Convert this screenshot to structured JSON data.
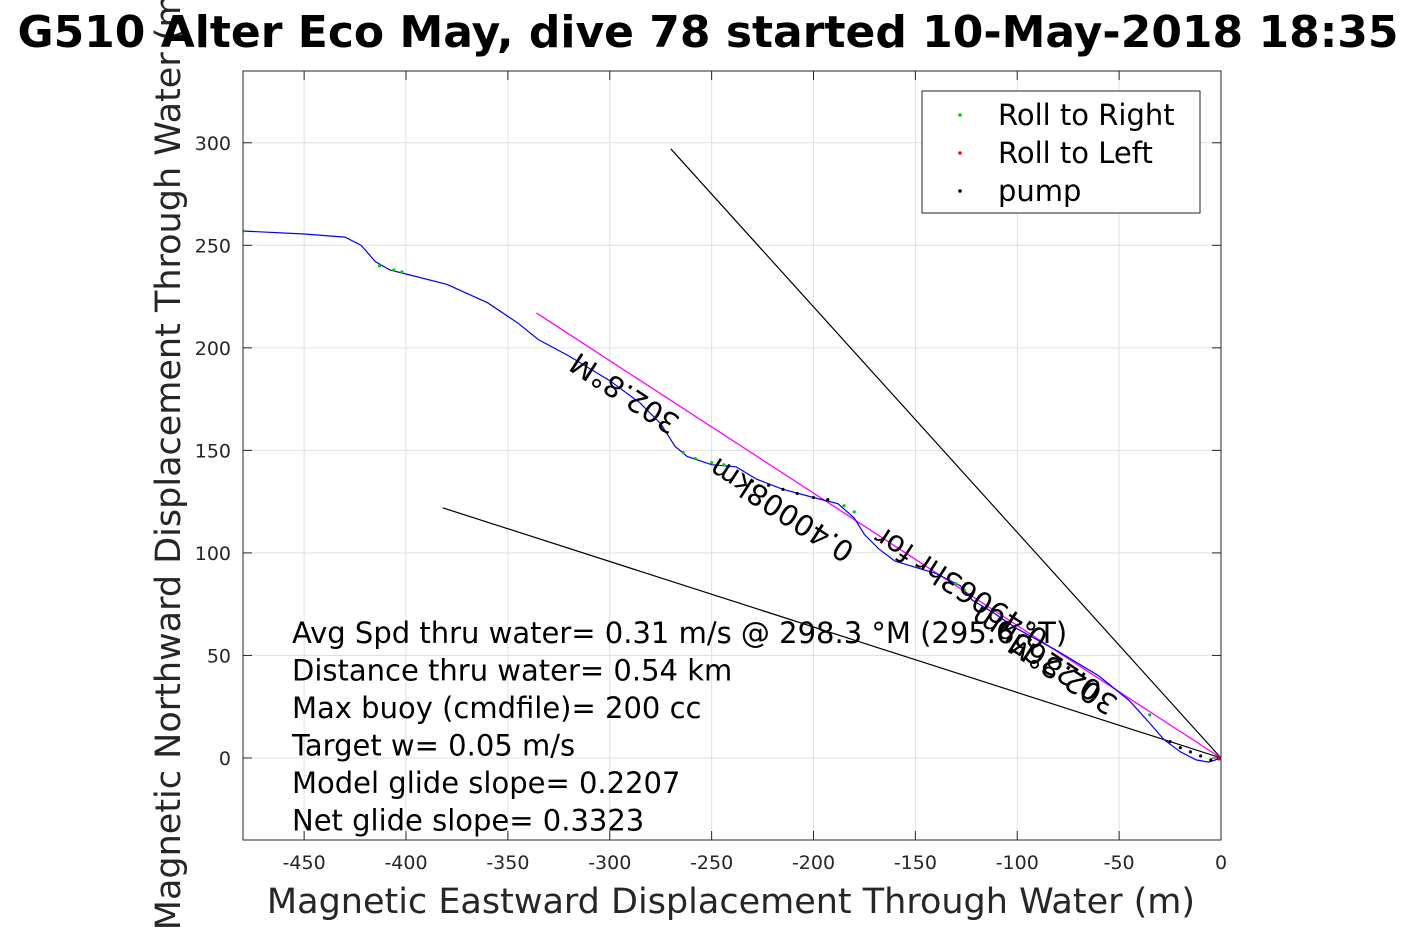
{
  "chart_data": {
    "type": "line",
    "title": "G510 Alter Eco May, dive 78 started 10-May-2018 18:35",
    "xlabel": "Magnetic Eastward Displacement Through Water (m)",
    "ylabel": "Magnetic Northward Displacement Through Water (m)",
    "xlim": [
      -480,
      0
    ],
    "ylim": [
      -40,
      335
    ],
    "xticks": [
      -450,
      -400,
      -350,
      -300,
      -250,
      -200,
      -150,
      -100,
      -50,
      0
    ],
    "yticks": [
      0,
      50,
      100,
      150,
      200,
      250,
      300
    ],
    "grid": true,
    "legend_position": "top-right",
    "legend": [
      "Roll to Right",
      "Roll to Left",
      "pump"
    ],
    "colors": {
      "track": "#0000ff",
      "fit_line": "#ff00ff",
      "roll_right": "#00cc00",
      "roll_left": "#ff0000",
      "pump": "#000000",
      "guide_lines": "#000000",
      "grid": "#e0e0e0"
    },
    "track": [
      [
        -480,
        257
      ],
      [
        -450,
        255.5
      ],
      [
        -430,
        254
      ],
      [
        -422,
        250
      ],
      [
        -415,
        242
      ],
      [
        -408,
        238
      ],
      [
        -400,
        236
      ],
      [
        -380,
        231
      ],
      [
        -360,
        222
      ],
      [
        -345,
        212
      ],
      [
        -335,
        204
      ],
      [
        -320,
        196
      ],
      [
        -300,
        184
      ],
      [
        -285,
        173
      ],
      [
        -275,
        163
      ],
      [
        -268,
        152
      ],
      [
        -262,
        147
      ],
      [
        -250,
        143
      ],
      [
        -238,
        142
      ],
      [
        -228,
        136
      ],
      [
        -215,
        131
      ],
      [
        -200,
        127
      ],
      [
        -188,
        124
      ],
      [
        -180,
        117
      ],
      [
        -175,
        109
      ],
      [
        -168,
        102
      ],
      [
        -160,
        96
      ],
      [
        -150,
        93
      ],
      [
        -140,
        90
      ],
      [
        -128,
        84
      ],
      [
        -122,
        77
      ],
      [
        -112,
        71
      ],
      [
        -100,
        63
      ],
      [
        -80,
        52
      ],
      [
        -60,
        40
      ],
      [
        -45,
        28
      ],
      [
        -35,
        17
      ],
      [
        -28,
        9
      ],
      [
        -20,
        3
      ],
      [
        -12,
        -1
      ],
      [
        -6,
        -2
      ],
      [
        0,
        0
      ]
    ],
    "series": [
      {
        "name": "Roll to Right",
        "x": [
          -480,
          -413,
          -406,
          -402,
          -264,
          -258,
          -250,
          -244,
          -185,
          -180,
          -130,
          -126,
          -35
        ],
        "y": [
          257,
          240,
          238,
          237,
          149,
          146,
          144,
          143,
          123,
          120,
          85,
          82,
          21
        ]
      },
      {
        "name": "Roll to Left",
        "x": [
          -1,
          0
        ],
        "y": [
          -0.5,
          0
        ]
      },
      {
        "name": "pump",
        "x": [
          -230,
          -222,
          -215,
          -208,
          -200,
          -193,
          -25,
          -20,
          -15,
          -10,
          -5
        ],
        "y": [
          135,
          133,
          131,
          129,
          127,
          126,
          8,
          5,
          3,
          1,
          -1
        ]
      }
    ],
    "fit_line": {
      "x": [
        -336,
        0
      ],
      "y": [
        217,
        0
      ]
    },
    "guide_lines": [
      {
        "x": [
          -270,
          0
        ],
        "y": [
          297,
          0
        ]
      },
      {
        "x": [
          -382,
          0
        ],
        "y": [
          122,
          0
        ]
      }
    ],
    "rotated_labels": [
      {
        "text": "302.8°M",
        "x": -290,
        "y": 182,
        "angle": 32.9
      },
      {
        "text": "302.8°M",
        "x": -75,
        "y": 45,
        "angle": 32.9
      },
      {
        "text": "0.40008km",
        "x": -213,
        "y": 125,
        "angle": 32.9
      },
      {
        "text": "0.2265nm",
        "x": -88,
        "y": 55,
        "angle": 32.9
      },
      {
        "text": "0.49063hr for",
        "x": -125,
        "y": 87,
        "angle": 32.9
      }
    ],
    "annotations": [
      "Avg Spd thru water=  0.31 m/s @ 298.3 °M (295.6 °T)",
      "Distance thru water=  0.54 km",
      "Max buoy (cmdfile)= 200 cc",
      "Target w= 0.05 m/s",
      "Model glide slope= 0.2207",
      "Net glide slope= 0.3323"
    ]
  }
}
